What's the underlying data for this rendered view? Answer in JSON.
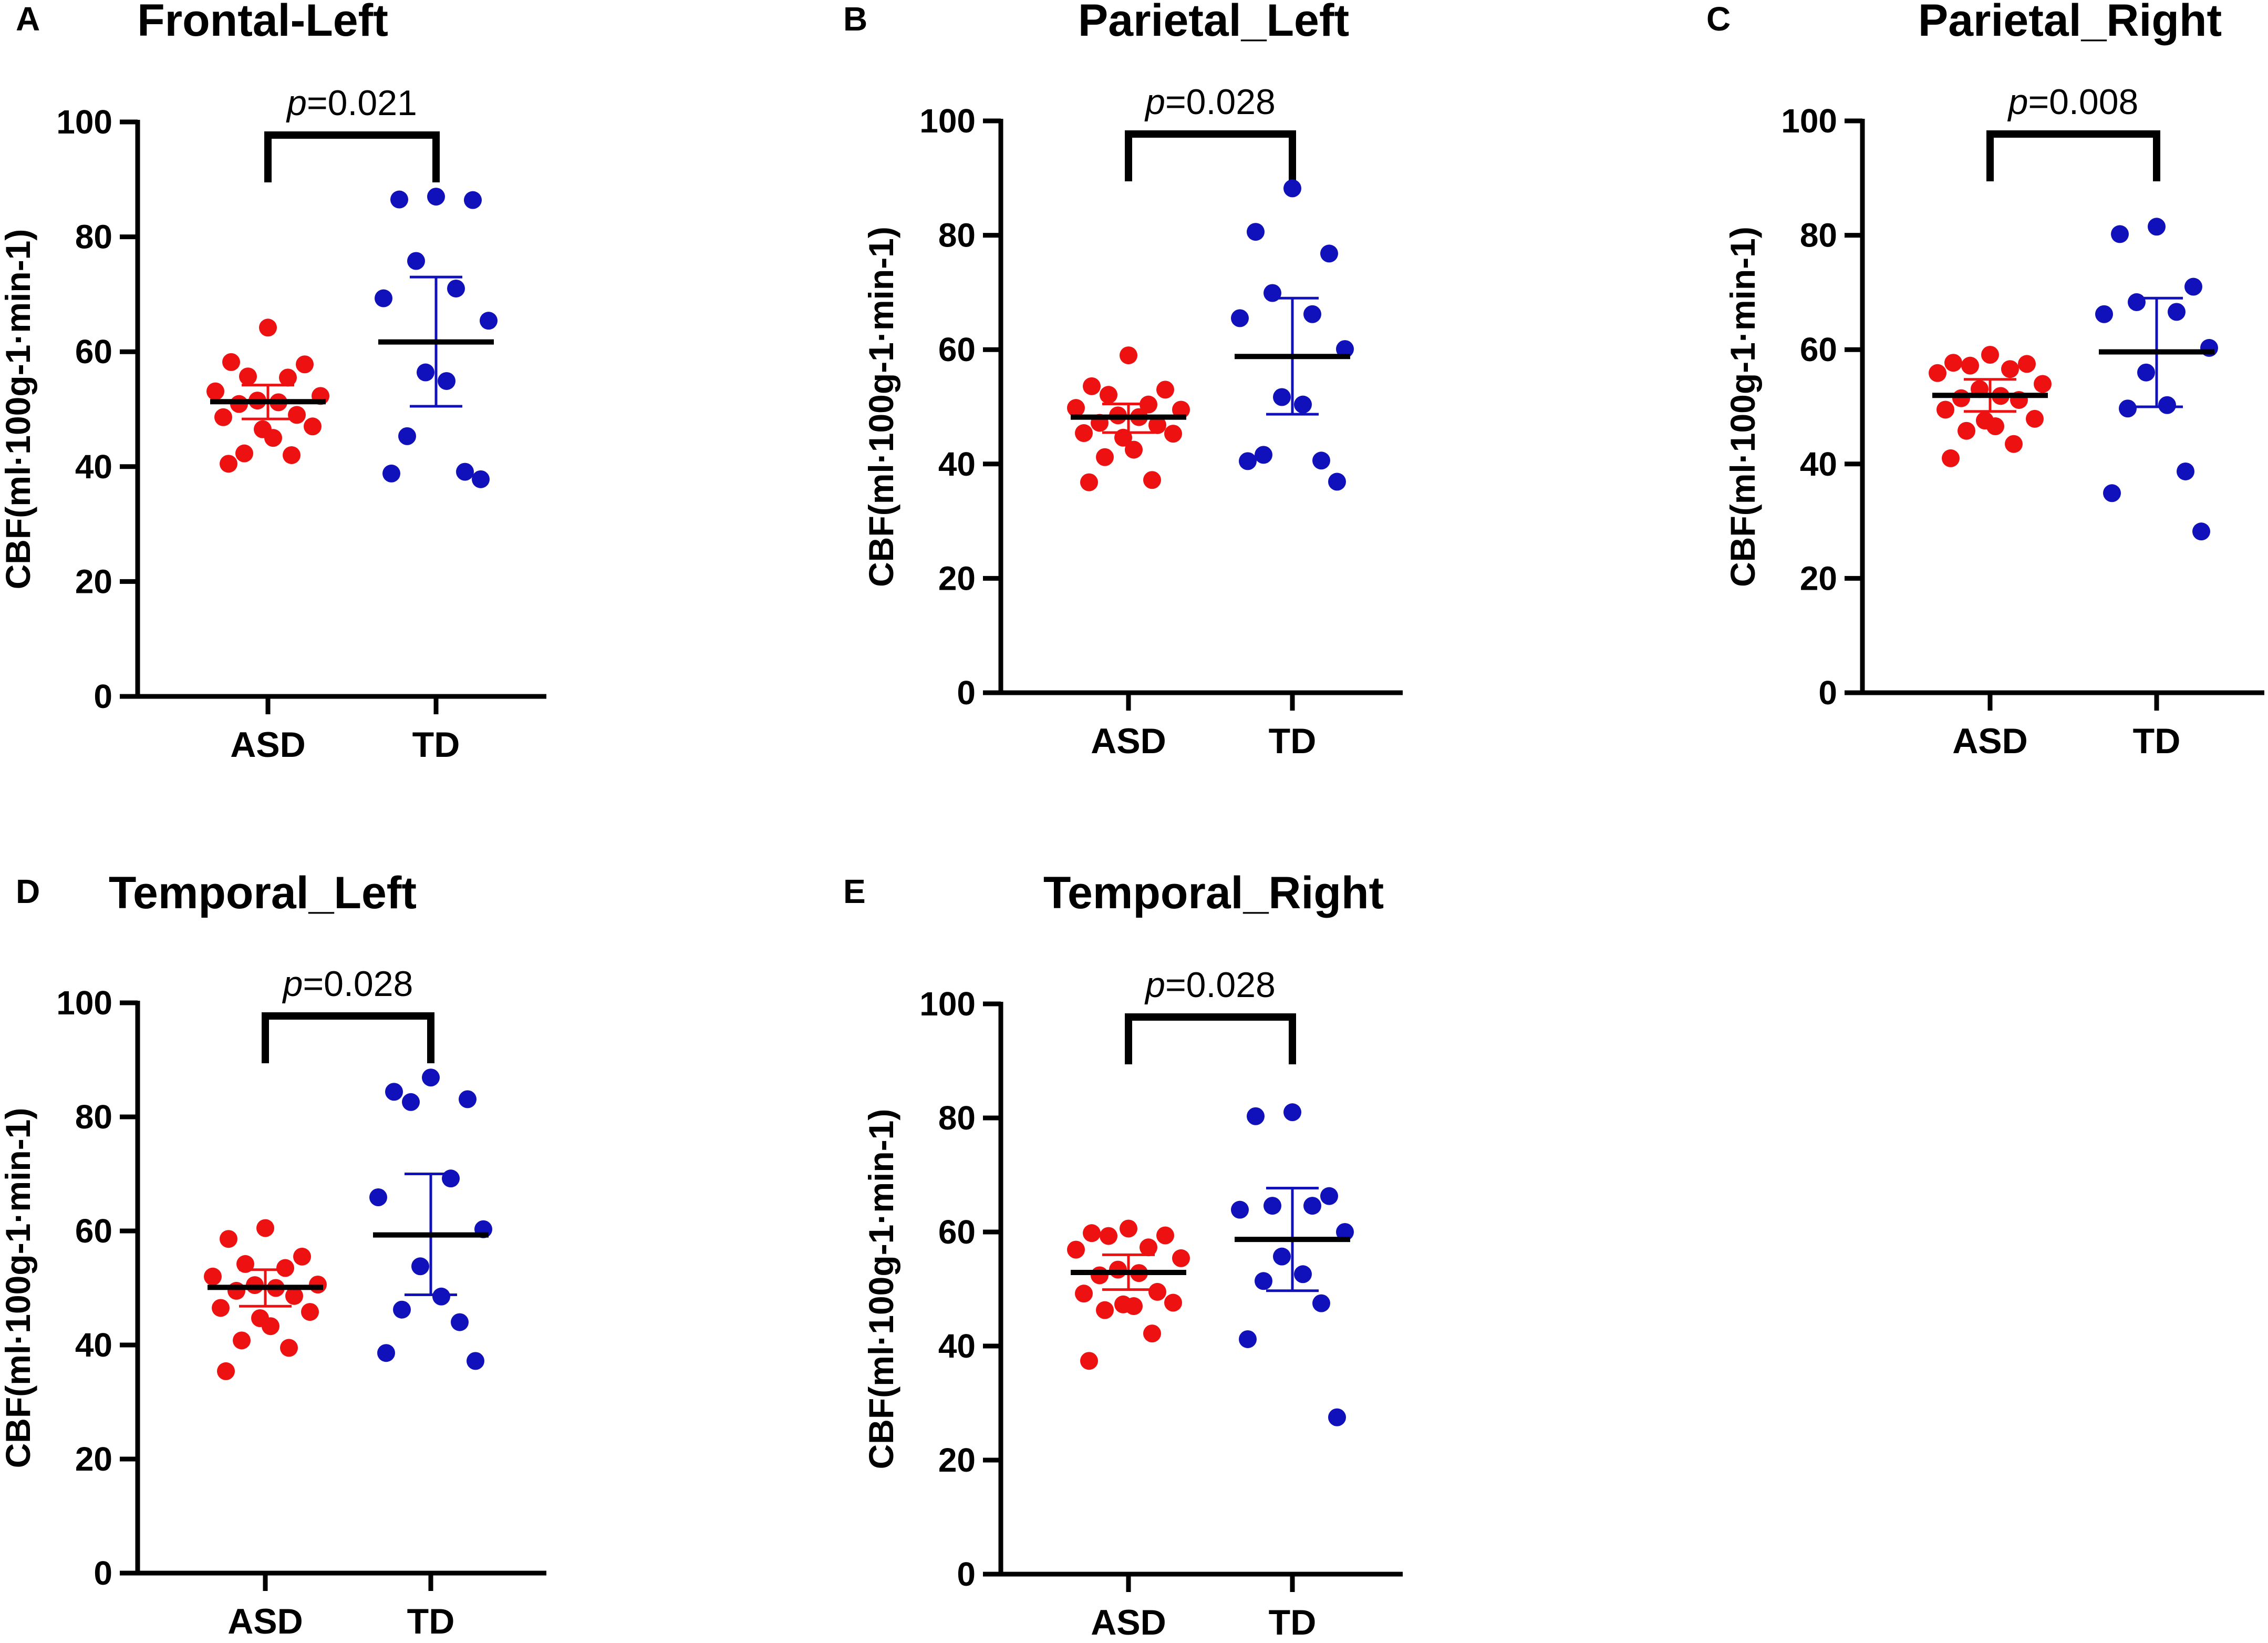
{
  "chart_data": [
    {
      "panel": "A",
      "type": "scatter",
      "title": "Frontal-Left",
      "ylabel": "CBF(ml·100g-1·min-1)",
      "categories": [
        "ASD",
        "TD"
      ],
      "ylim": [
        0,
        100
      ],
      "yticks": [
        "0",
        "20",
        "40",
        "60",
        "80",
        "100"
      ],
      "p_label": "p",
      "p_value": "=0.021",
      "series": [
        {
          "name": "ASD",
          "color": "#ee1111",
          "mean": 51.3,
          "ci": [
            48.3,
            54.2
          ],
          "points": [
            64.2,
            58.2,
            57.8,
            55.7,
            55.5,
            53.1,
            52.3,
            51.5,
            51.2,
            50.9,
            49.0,
            48.6,
            47.0,
            46.5,
            45.0,
            42.3,
            42.0,
            40.5
          ]
        },
        {
          "name": "TD",
          "color": "#1111bb",
          "mean": 61.7,
          "ci": [
            50.5,
            73.0
          ],
          "points": [
            87.0,
            86.4,
            86.5,
            75.8,
            71.0,
            69.3,
            65.4,
            56.4,
            54.9,
            45.3,
            39.1,
            38.8,
            37.8
          ]
        }
      ]
    },
    {
      "panel": "B",
      "type": "scatter",
      "title": "Parietal_Left",
      "ylabel": "CBF(ml·100g-1·min-1)",
      "categories": [
        "ASD",
        "TD"
      ],
      "ylim": [
        0,
        100
      ],
      "yticks": [
        "0",
        "20",
        "40",
        "60",
        "80",
        "100"
      ],
      "p_label": "p",
      "p_value": "=0.028",
      "series": [
        {
          "name": "ASD",
          "color": "#ee1111",
          "mean": 48.2,
          "ci": [
            45.5,
            50.5
          ],
          "points": [
            59.0,
            53.6,
            53.0,
            52.1,
            50.4,
            49.8,
            49.5,
            48.5,
            48.2,
            47.2,
            46.8,
            45.4,
            45.3,
            44.6,
            42.5,
            41.2,
            37.2,
            36.8
          ]
        },
        {
          "name": "TD",
          "color": "#1111bb",
          "mean": 58.8,
          "ci": [
            48.7,
            69.0
          ],
          "points": [
            88.2,
            80.6,
            76.8,
            69.9,
            66.2,
            65.5,
            60.1,
            51.7,
            50.4,
            41.6,
            40.6,
            40.5,
            36.9
          ]
        }
      ]
    },
    {
      "panel": "C",
      "type": "scatter",
      "title": "Parietal_Right",
      "ylabel": "CBF(ml·100g-1·min-1)",
      "categories": [
        "ASD",
        "TD"
      ],
      "ylim": [
        0,
        100
      ],
      "yticks": [
        "0",
        "20",
        "40",
        "60",
        "80",
        "100"
      ],
      "p_label": "p",
      "p_value": "=0.008",
      "series": [
        {
          "name": "ASD",
          "color": "#ee1111",
          "mean": 52.0,
          "ci": [
            49.2,
            54.8
          ],
          "points": [
            59.1,
            57.7,
            57.5,
            57.2,
            56.6,
            55.9,
            54.0,
            53.1,
            51.9,
            51.5,
            51.2,
            49.5,
            47.9,
            47.6,
            46.6,
            45.8,
            43.5,
            41.0
          ]
        },
        {
          "name": "TD",
          "color": "#1111bb",
          "mean": 59.6,
          "ci": [
            50.0,
            69.0
          ],
          "points": [
            81.5,
            80.2,
            71.0,
            68.3,
            66.6,
            66.2,
            60.3,
            56.0,
            50.3,
            49.7,
            38.7,
            34.9,
            28.2
          ]
        }
      ]
    },
    {
      "panel": "D",
      "type": "scatter",
      "title": "Temporal_Left",
      "ylabel": "CBF(ml·100g-1·min-1)",
      "categories": [
        "ASD",
        "TD"
      ],
      "ylim": [
        0,
        100
      ],
      "yticks": [
        "0",
        "20",
        "40",
        "60",
        "80",
        "100"
      ],
      "p_label": "p",
      "p_value": "=0.028",
      "series": [
        {
          "name": "ASD",
          "color": "#ee1111",
          "mean": 50.1,
          "ci": [
            46.8,
            53.2
          ],
          "points": [
            60.5,
            58.6,
            55.5,
            54.2,
            53.5,
            52.0,
            50.6,
            50.5,
            50.0,
            49.5,
            48.6,
            46.5,
            45.8,
            44.7,
            43.3,
            40.8,
            39.5,
            35.4
          ]
        },
        {
          "name": "TD",
          "color": "#1111bb",
          "mean": 59.3,
          "ci": [
            48.8,
            70.0
          ],
          "points": [
            86.9,
            84.4,
            83.1,
            82.6,
            69.2,
            65.9,
            60.3,
            53.8,
            48.5,
            46.2,
            44.0,
            38.6,
            37.2
          ]
        }
      ]
    },
    {
      "panel": "E",
      "type": "scatter",
      "title": "Temporal_Right",
      "ylabel": "CBF(ml·100g-1·min-1)",
      "categories": [
        "ASD",
        "TD"
      ],
      "ylim": [
        0,
        100
      ],
      "yticks": [
        "0",
        "20",
        "40",
        "60",
        "80",
        "100"
      ],
      "p_label": "p",
      "p_value": "=0.028",
      "series": [
        {
          "name": "ASD",
          "color": "#ee1111",
          "mean": 52.9,
          "ci": [
            49.9,
            56.0
          ],
          "points": [
            60.6,
            59.8,
            59.4,
            59.3,
            57.3,
            56.9,
            55.4,
            53.4,
            52.8,
            52.4,
            49.5,
            49.2,
            47.6,
            47.3,
            47.0,
            46.3,
            42.2,
            37.4
          ]
        },
        {
          "name": "TD",
          "color": "#1111bb",
          "mean": 58.7,
          "ci": [
            49.7,
            67.7
          ],
          "points": [
            81.0,
            80.3,
            66.3,
            64.6,
            64.6,
            63.9,
            60.0,
            55.7,
            52.6,
            51.4,
            47.5,
            41.2,
            27.5
          ]
        }
      ]
    }
  ]
}
